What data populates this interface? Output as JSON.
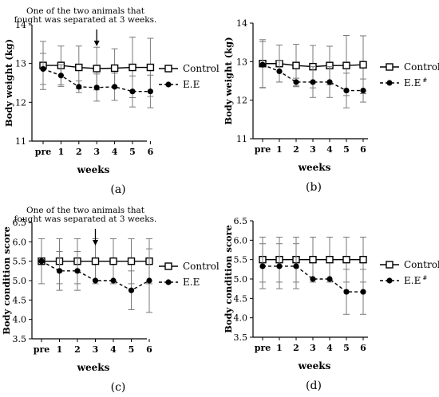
{
  "figure": {
    "panels": [
      {
        "letter": "(a)",
        "annotation": [
          "One of the two animals that",
          "fought was separated at 3 weeks."
        ],
        "arrow_at": "3",
        "legend": [
          {
            "label": "Control",
            "marker": "open-square",
            "superscript": ""
          },
          {
            "label": "E.E",
            "marker": "filled-circle",
            "superscript": ""
          }
        ]
      },
      {
        "letter": "(b)",
        "annotation": [],
        "arrow_at": null,
        "legend": [
          {
            "label": "Control",
            "marker": "open-square",
            "superscript": ""
          },
          {
            "label": "E.E",
            "marker": "filled-circle",
            "superscript": "#"
          }
        ]
      },
      {
        "letter": "(c)",
        "annotation": [
          "One of the two animals that",
          "fought was separated at 3 weeks."
        ],
        "arrow_at": "3",
        "legend": [
          {
            "label": "Control",
            "marker": "open-square",
            "superscript": ""
          },
          {
            "label": "E.E",
            "marker": "filled-circle",
            "superscript": ""
          }
        ]
      },
      {
        "letter": "(d)",
        "annotation": [],
        "arrow_at": null,
        "legend": [
          {
            "label": "Control",
            "marker": "open-square",
            "superscript": ""
          },
          {
            "label": "E.E",
            "marker": "filled-circle",
            "superscript": "#"
          }
        ]
      }
    ]
  },
  "chart_data": [
    {
      "type": "line",
      "xlabel": "weeks",
      "ylabel": "Body weight (kg)",
      "categories": [
        "pre",
        "1",
        "2",
        "3",
        "4",
        "5",
        "6"
      ],
      "ylim": [
        11,
        14
      ],
      "yticks": [
        "11",
        "12",
        "13",
        "14"
      ],
      "series": [
        {
          "name": "Control",
          "values": [
            12.95,
            12.95,
            12.9,
            12.87,
            12.88,
            12.9,
            12.9
          ],
          "err": [
            0.62,
            0.5,
            0.55,
            0.55,
            0.5,
            0.78,
            0.75
          ],
          "style": "solid",
          "marker": "open-square"
        },
        {
          "name": "E.E",
          "values": [
            12.86,
            12.69,
            12.4,
            12.38,
            12.4,
            12.28,
            12.28
          ],
          "err": [
            0.4,
            0.28,
            0.15,
            0.35,
            0.35,
            0.4,
            0.42
          ],
          "style": "dashed",
          "marker": "filled-circle"
        }
      ]
    },
    {
      "type": "line",
      "xlabel": "weeks",
      "ylabel": "Body weight (kg)",
      "categories": [
        "pre",
        "1",
        "2",
        "3",
        "4",
        "5",
        "6"
      ],
      "ylim": [
        11,
        14
      ],
      "yticks": [
        "11",
        "12",
        "13",
        "14"
      ],
      "series": [
        {
          "name": "Control",
          "values": [
            12.95,
            12.95,
            12.9,
            12.87,
            12.9,
            12.9,
            12.92
          ],
          "err": [
            0.62,
            0.48,
            0.55,
            0.55,
            0.5,
            0.78,
            0.75
          ],
          "style": "solid",
          "marker": "open-square"
        },
        {
          "name": "E.E",
          "values": [
            12.92,
            12.75,
            12.47,
            12.47,
            12.47,
            12.25,
            12.25
          ],
          "err": [
            0.6,
            0.28,
            0.1,
            0.4,
            0.4,
            0.45,
            0.3
          ],
          "style": "dashed",
          "marker": "filled-circle"
        }
      ]
    },
    {
      "type": "line",
      "xlabel": "weeks",
      "ylabel": "Body condition score",
      "categories": [
        "pre",
        "1",
        "2",
        "3",
        "4",
        "5",
        "6"
      ],
      "ylim": [
        3.5,
        6.5
      ],
      "yticks": [
        "3.5",
        "4.0",
        "4.5",
        "5.0",
        "5.5",
        "6.0",
        "6.5"
      ],
      "series": [
        {
          "name": "Control",
          "values": [
            5.5,
            5.5,
            5.5,
            5.5,
            5.5,
            5.5,
            5.5
          ],
          "err": [
            0.58,
            0.58,
            0.58,
            0.58,
            0.58,
            0.58,
            0.58
          ],
          "style": "solid",
          "marker": "open-square"
        },
        {
          "name": "E.E",
          "values": [
            5.5,
            5.25,
            5.25,
            5.0,
            5.0,
            4.75,
            5.0
          ],
          "err": [
            0.0,
            0.5,
            0.5,
            0.0,
            0.0,
            0.5,
            0.82
          ],
          "style": "dashed",
          "marker": "filled-circle"
        }
      ]
    },
    {
      "type": "line",
      "xlabel": "weeks",
      "ylabel": "Body condition score",
      "categories": [
        "pre",
        "1",
        "2",
        "3",
        "4",
        "5",
        "6"
      ],
      "ylim": [
        3.5,
        6.5
      ],
      "yticks": [
        "3.5",
        "4.0",
        "4.5",
        "5.0",
        "5.5",
        "6.0",
        "6.5"
      ],
      "series": [
        {
          "name": "Control",
          "values": [
            5.5,
            5.5,
            5.5,
            5.5,
            5.5,
            5.5,
            5.5
          ],
          "err": [
            0.58,
            0.58,
            0.58,
            0.58,
            0.58,
            0.58,
            0.58
          ],
          "style": "solid",
          "marker": "open-square"
        },
        {
          "name": "E.E",
          "values": [
            5.33,
            5.33,
            5.33,
            5.0,
            5.0,
            4.67,
            4.67
          ],
          "err": [
            0.58,
            0.58,
            0.58,
            0.0,
            0.0,
            0.58,
            0.58
          ],
          "style": "dashed",
          "marker": "filled-circle"
        }
      ]
    }
  ]
}
